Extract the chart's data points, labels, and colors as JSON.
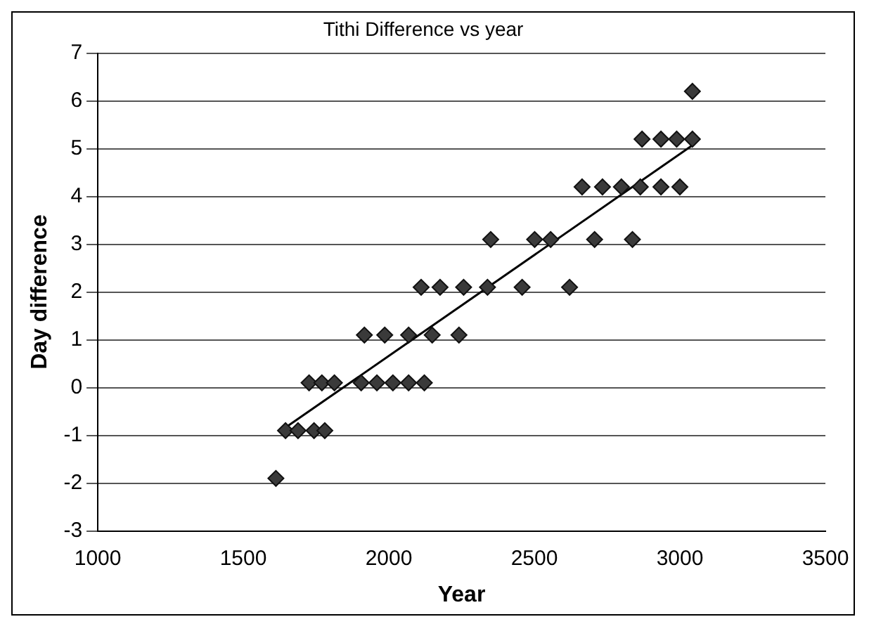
{
  "chart_data": {
    "type": "scatter",
    "title": "Tithi Difference vs year",
    "xlabel": "Year",
    "ylabel": "Day difference",
    "xlim": [
      1000,
      3500
    ],
    "xticks": [
      1000,
      1500,
      2000,
      2500,
      3000,
      3500
    ],
    "ylim": [
      -3,
      7
    ],
    "yticks": [
      -3,
      -2,
      -1,
      0,
      1,
      2,
      3,
      4,
      5,
      6,
      7
    ],
    "grid": "y",
    "legend": false,
    "marker": "diamond",
    "series": [
      {
        "color": "#3a3a3a",
        "x": [
          1612,
          1645,
          1688,
          1743,
          1780,
          1726,
          1770,
          1813,
          1905,
          1959,
          2014,
          2068,
          2122,
          1916,
          1986,
          2068,
          2149,
          2241,
          2111,
          2176,
          2257,
          2339,
          2458,
          2621,
          2350,
          2501,
          2556,
          2707,
          2837,
          2664,
          2734,
          2799,
          2864,
          2935,
          3000,
          2870,
          2935,
          2989,
          3043,
          3043
        ],
        "values": [
          -1.9,
          -0.9,
          -0.9,
          -0.9,
          -0.9,
          0.1,
          0.1,
          0.1,
          0.1,
          0.1,
          0.1,
          0.1,
          0.1,
          1.1,
          1.1,
          1.1,
          1.1,
          1.1,
          2.1,
          2.1,
          2.1,
          2.1,
          2.1,
          2.1,
          3.1,
          3.1,
          3.1,
          3.1,
          3.1,
          4.2,
          4.2,
          4.2,
          4.2,
          4.2,
          4.2,
          5.2,
          5.2,
          5.2,
          5.2,
          6.2
        ]
      },
      {
        "type": "line",
        "color": "#000000",
        "marker": "none",
        "x": [
          1630,
          3050
        ],
        "values": [
          -0.9,
          5.1
        ]
      }
    ]
  }
}
